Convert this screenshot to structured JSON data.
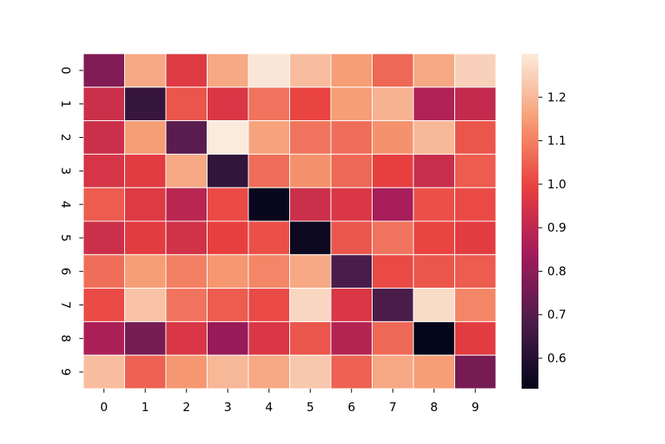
{
  "chart_data": {
    "type": "heatmap",
    "title": "",
    "xlabel": "",
    "ylabel": "",
    "x_categories": [
      "0",
      "1",
      "2",
      "3",
      "4",
      "5",
      "6",
      "7",
      "8",
      "9"
    ],
    "y_categories": [
      "0",
      "1",
      "2",
      "3",
      "4",
      "5",
      "6",
      "7",
      "8",
      "9"
    ],
    "values": [
      [
        0.78,
        1.17,
        0.97,
        1.17,
        1.29,
        1.21,
        1.15,
        1.06,
        1.17,
        1.25
      ],
      [
        0.93,
        0.64,
        1.03,
        0.96,
        1.08,
        1.0,
        1.15,
        1.19,
        0.87,
        0.91
      ],
      [
        0.93,
        1.15,
        0.71,
        1.3,
        1.16,
        1.08,
        1.07,
        1.13,
        1.2,
        1.03
      ],
      [
        0.95,
        0.98,
        1.17,
        0.63,
        1.07,
        1.13,
        1.06,
        0.99,
        0.92,
        1.04
      ],
      [
        1.04,
        0.97,
        0.89,
        1.01,
        0.54,
        0.93,
        0.96,
        0.85,
        1.02,
        1.01
      ],
      [
        0.93,
        0.98,
        0.94,
        0.99,
        1.02,
        0.55,
        1.03,
        1.08,
        1.0,
        0.98
      ],
      [
        1.07,
        1.15,
        1.1,
        1.14,
        1.11,
        1.17,
        0.68,
        1.01,
        1.03,
        1.04
      ],
      [
        1.01,
        1.22,
        1.08,
        1.04,
        1.01,
        1.26,
        0.96,
        0.68,
        1.27,
        1.11
      ],
      [
        0.86,
        0.76,
        0.96,
        0.82,
        0.96,
        1.03,
        0.88,
        1.06,
        0.53,
        0.98
      ],
      [
        1.21,
        1.05,
        1.14,
        1.2,
        1.17,
        1.23,
        1.05,
        1.17,
        1.15,
        0.76
      ]
    ],
    "vmin": 0.53,
    "vmax": 1.3,
    "colorbar_ticks": [
      0.6,
      0.7,
      0.8,
      0.9,
      1.0,
      1.1,
      1.2
    ],
    "colorbar_tick_labels": [
      "0.6",
      "0.7",
      "0.8",
      "0.9",
      "1.0",
      "1.1",
      "1.2"
    ],
    "colormap": "rocket",
    "colormap_stops": [
      "#03051a",
      "#4c1d4b",
      "#a11a5b",
      "#e83f3f",
      "#f69c73",
      "#faebdd"
    ],
    "cell_border_color": "#ffffff",
    "grid": false,
    "legend": "colorbar-right"
  }
}
